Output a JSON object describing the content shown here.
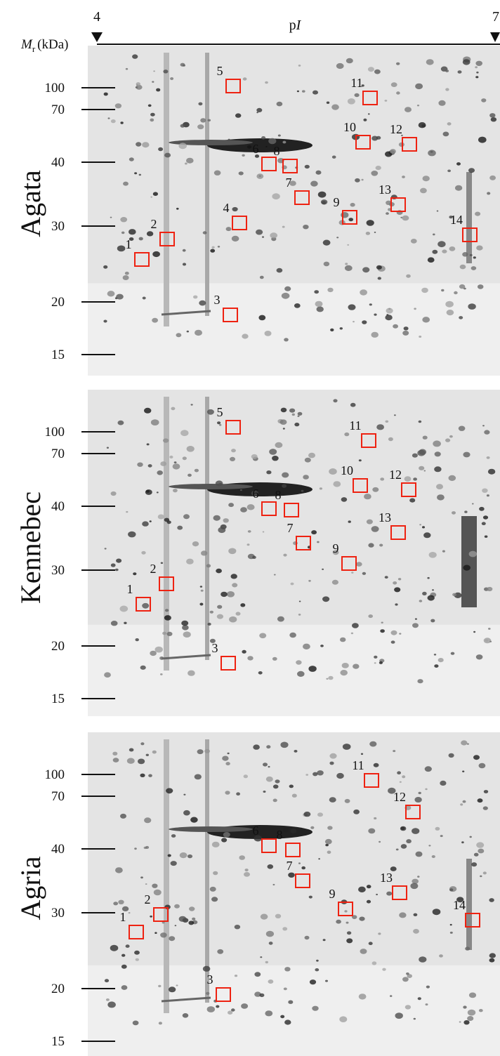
{
  "axis": {
    "left": "4",
    "center": {
      "p": "p",
      "i": "I"
    },
    "right": "7",
    "mr": {
      "symbol": "M",
      "subscript": "r",
      "unit": "(kDa)"
    }
  },
  "panels": [
    {
      "name": "Agata",
      "mr_ticks": [
        "100",
        "70",
        "40",
        "30",
        "20",
        "15"
      ],
      "spots": [
        "5",
        "11",
        "10",
        "12",
        "6",
        "8",
        "7",
        "9",
        "13",
        "4",
        "2",
        "1",
        "14",
        "3"
      ]
    },
    {
      "name": "Kennebec",
      "mr_ticks": [
        "100",
        "70",
        "40",
        "30",
        "20",
        "15"
      ],
      "spots": [
        "5",
        "11",
        "10",
        "12",
        "6",
        "8",
        "7",
        "9",
        "13",
        "2",
        "1",
        "3"
      ]
    },
    {
      "name": "Agria",
      "mr_ticks": [
        "100",
        "70",
        "40",
        "30",
        "20",
        "15"
      ],
      "spots": [
        "11",
        "12",
        "6",
        "8",
        "7",
        "9",
        "13",
        "2",
        "1",
        "14",
        "3"
      ]
    }
  ]
}
